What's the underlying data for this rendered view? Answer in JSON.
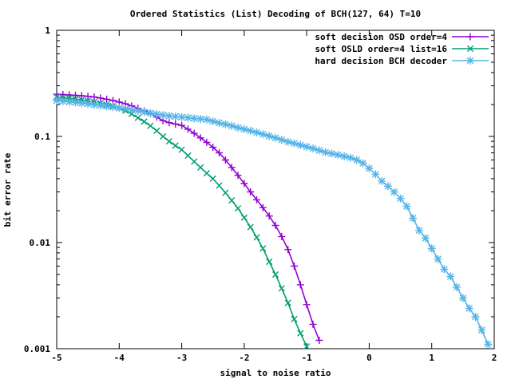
{
  "page": {
    "background": "#ffffff",
    "axis_color": "#000000",
    "text_color": "#000000"
  },
  "chart_data": {
    "type": "line",
    "title": "Ordered Statistics (List) Decoding of BCH(127, 64) T=10",
    "xlabel": "signal to noise ratio",
    "ylabel": "bit error rate",
    "xlim": [
      -5,
      2
    ],
    "ylim": [
      0.001,
      1
    ],
    "xscale": "linear",
    "yscale": "log",
    "grid": false,
    "legend_position": "top-right-inside",
    "xticks": [
      -5,
      -4,
      -3,
      -2,
      -1,
      0,
      1,
      2
    ],
    "yticks": [
      {
        "value": 1,
        "label": "1"
      },
      {
        "value": 0.1,
        "label": "0.1"
      },
      {
        "value": 0.01,
        "label": "0.01"
      },
      {
        "value": 0.001,
        "label": "0.001"
      }
    ],
    "series": [
      {
        "name": "soft decision OSD order=4",
        "color": "#9400d3",
        "marker": "plus",
        "x_start": -5.0,
        "x_step": 0.1,
        "x_end": -0.8,
        "values": [
          0.25,
          0.248,
          0.246,
          0.244,
          0.242,
          0.239,
          0.235,
          0.23,
          0.224,
          0.218,
          0.211,
          0.203,
          0.194,
          0.184,
          0.174,
          0.164,
          0.152,
          0.141,
          0.135,
          0.131,
          0.127,
          0.117,
          0.107,
          0.097,
          0.088,
          0.079,
          0.07,
          0.06,
          0.051,
          0.043,
          0.036,
          0.03,
          0.0253,
          0.0213,
          0.0178,
          0.0145,
          0.0114,
          0.0086,
          0.006,
          0.004,
          0.0026,
          0.0017,
          0.0012
        ]
      },
      {
        "name": "soft OSLD order=4 list=16",
        "color": "#009e73",
        "marker": "cross",
        "x_start": -5.0,
        "x_step": 0.1,
        "x_end": -1.0,
        "values": [
          0.235,
          0.232,
          0.229,
          0.225,
          0.221,
          0.217,
          0.212,
          0.206,
          0.2,
          0.193,
          0.185,
          0.175,
          0.163,
          0.15,
          0.138,
          0.126,
          0.113,
          0.1,
          0.09,
          0.082,
          0.075,
          0.066,
          0.058,
          0.051,
          0.045,
          0.04,
          0.0345,
          0.0295,
          0.025,
          0.021,
          0.0172,
          0.014,
          0.0112,
          0.0088,
          0.0066,
          0.005,
          0.0037,
          0.0027,
          0.0019,
          0.0014,
          0.00105
        ]
      },
      {
        "name": "hard decision BCH decoder",
        "color": "#56b4e9",
        "marker": "asterisk",
        "x_start": -5.0,
        "x_step": 0.1,
        "x_end": 1.9,
        "values": [
          0.218,
          0.215,
          0.212,
          0.209,
          0.206,
          0.203,
          0.199,
          0.196,
          0.192,
          0.189,
          0.186,
          0.182,
          0.178,
          0.174,
          0.17,
          0.166,
          0.162,
          0.159,
          0.156,
          0.154,
          0.152,
          0.15,
          0.148,
          0.146,
          0.144,
          0.139,
          0.134,
          0.13,
          0.126,
          0.121,
          0.117,
          0.113,
          0.109,
          0.105,
          0.101,
          0.097,
          0.093,
          0.089,
          0.086,
          0.083,
          0.08,
          0.077,
          0.074,
          0.071,
          0.069,
          0.067,
          0.065,
          0.063,
          0.06,
          0.056,
          0.05,
          0.044,
          0.038,
          0.034,
          0.03,
          0.026,
          0.022,
          0.017,
          0.013,
          0.011,
          0.0088,
          0.007,
          0.0056,
          0.0048,
          0.0038,
          0.003,
          0.0024,
          0.002,
          0.0015,
          0.0011
        ]
      }
    ]
  }
}
